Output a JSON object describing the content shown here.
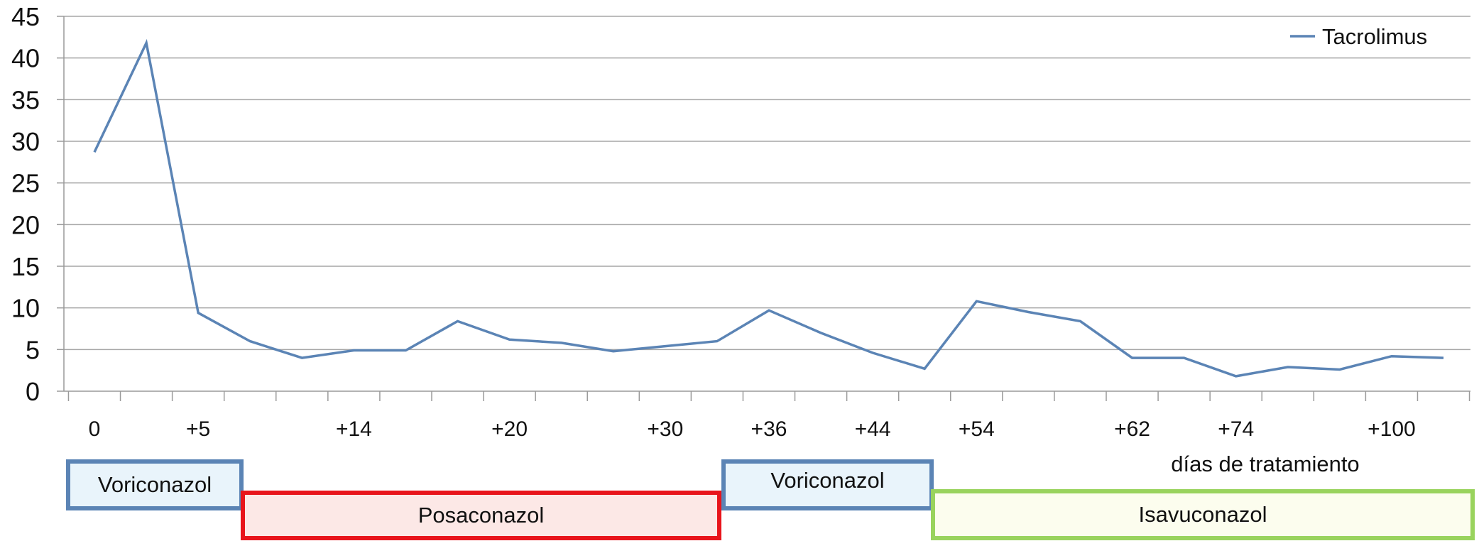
{
  "chart_data": {
    "type": "line",
    "title": "",
    "xlabel": "días de tratamiento",
    "ylabel": "",
    "ylim": [
      0,
      45
    ],
    "yticks": [
      0,
      5,
      10,
      15,
      20,
      25,
      30,
      35,
      40,
      45
    ],
    "grid": true,
    "legend": "top-right",
    "x_tick_labels": [
      "0",
      "+5",
      "+14",
      "+20",
      "+30",
      "+36",
      "+44",
      "+54",
      "+62",
      "+74",
      "+100"
    ],
    "x_tick_label_indices": [
      0,
      2,
      5,
      8,
      11,
      13,
      15,
      17,
      20,
      22,
      25
    ],
    "series": [
      {
        "name": "Tacrolimus",
        "color": "#5b84b5",
        "values": [
          28.7,
          41.8,
          9.4,
          6.0,
          4.0,
          4.9,
          4.9,
          8.4,
          6.2,
          5.8,
          4.8,
          5.4,
          6.0,
          9.7,
          7.0,
          4.6,
          2.7,
          10.8,
          9.5,
          8.4,
          4.0,
          4.0,
          1.8,
          2.9,
          2.6,
          4.2,
          4.0
        ]
      }
    ]
  },
  "treatments": [
    {
      "label": "Voriconazol",
      "border": "#5b84b5",
      "fill": "#e9f4fb"
    },
    {
      "label": "Posaconazol",
      "border": "#e8141b",
      "fill": "#fce8e6"
    },
    {
      "label": "Voriconazol",
      "border": "#5b84b5",
      "fill": "#e9f4fb"
    },
    {
      "label": "Isavuconazol",
      "border": "#99d35d",
      "fill": "#fcfdee"
    }
  ]
}
